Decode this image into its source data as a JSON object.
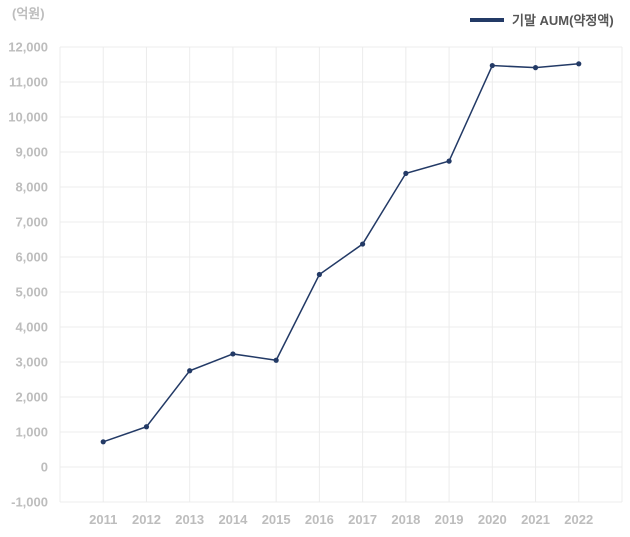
{
  "chart_data": {
    "type": "line",
    "y_unit_label": "(억원)",
    "categories": [
      "2011",
      "2012",
      "2013",
      "2014",
      "2015",
      "2016",
      "2017",
      "2018",
      "2019",
      "2020",
      "2021",
      "2022"
    ],
    "series": [
      {
        "name": "기말 AUM(약정액)",
        "color": "#233a66",
        "values": [
          720,
          1150,
          2750,
          3230,
          3050,
          5500,
          6370,
          8390,
          8740,
          11470,
          11410,
          11520
        ]
      }
    ],
    "ylim": [
      -1000,
      12000
    ],
    "yticks": [
      -1000,
      0,
      1000,
      2000,
      3000,
      4000,
      5000,
      6000,
      7000,
      8000,
      9000,
      10000,
      11000,
      12000
    ],
    "ytick_labels": [
      "-1,000",
      "0",
      "1,000",
      "2,000",
      "3,000",
      "4,000",
      "5,000",
      "6,000",
      "7,000",
      "8,000",
      "9,000",
      "10,000",
      "11,000",
      "12,000"
    ],
    "grid": true,
    "legend_position": "top-right"
  }
}
